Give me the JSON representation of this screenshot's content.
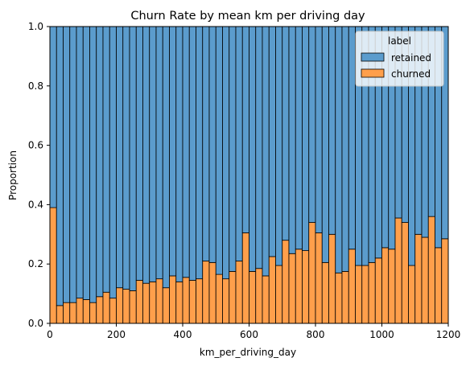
{
  "chart_data": {
    "type": "bar",
    "stacked": true,
    "normalized": true,
    "title": "Churn Rate by mean km per driving day",
    "xlabel": "km_per_driving_day",
    "ylabel": "Proportion",
    "xlim": [
      0,
      1200
    ],
    "ylim": [
      0,
      1
    ],
    "xticks": [
      "0",
      "200",
      "400",
      "600",
      "800",
      "1000",
      "1200"
    ],
    "yticks": [
      "0.0",
      "0.2",
      "0.4",
      "0.6",
      "0.8",
      "1.0"
    ],
    "bin_width": 20,
    "grid": false,
    "legend": {
      "title": "label",
      "placement": "top-right",
      "entries": [
        "retained",
        "churned"
      ]
    },
    "series": [
      {
        "name": "churned",
        "color": "#ff9f4b",
        "values": [
          0.39,
          0.06,
          0.07,
          0.07,
          0.085,
          0.08,
          0.07,
          0.09,
          0.105,
          0.085,
          0.12,
          0.115,
          0.11,
          0.145,
          0.135,
          0.14,
          0.15,
          0.12,
          0.16,
          0.14,
          0.155,
          0.145,
          0.15,
          0.21,
          0.205,
          0.165,
          0.15,
          0.175,
          0.21,
          0.305,
          0.175,
          0.185,
          0.16,
          0.225,
          0.195,
          0.28,
          0.235,
          0.25,
          0.245,
          0.34,
          0.305,
          0.205,
          0.3,
          0.17,
          0.175,
          0.25,
          0.195,
          0.195,
          0.205,
          0.22,
          0.255,
          0.25,
          0.355,
          0.34,
          0.195,
          0.3,
          0.29,
          0.36,
          0.255,
          0.285
        ]
      },
      {
        "name": "retained",
        "color": "#5b9ccd",
        "values": [
          0.61,
          0.94,
          0.93,
          0.93,
          0.915,
          0.92,
          0.93,
          0.91,
          0.895,
          0.915,
          0.88,
          0.885,
          0.89,
          0.855,
          0.865,
          0.86,
          0.85,
          0.88,
          0.84,
          0.86,
          0.845,
          0.855,
          0.85,
          0.79,
          0.795,
          0.835,
          0.85,
          0.825,
          0.79,
          0.695,
          0.825,
          0.815,
          0.84,
          0.775,
          0.805,
          0.72,
          0.765,
          0.75,
          0.755,
          0.66,
          0.695,
          0.795,
          0.7,
          0.83,
          0.825,
          0.75,
          0.805,
          0.805,
          0.795,
          0.78,
          0.745,
          0.75,
          0.645,
          0.66,
          0.805,
          0.7,
          0.71,
          0.64,
          0.745,
          0.715
        ]
      }
    ]
  }
}
